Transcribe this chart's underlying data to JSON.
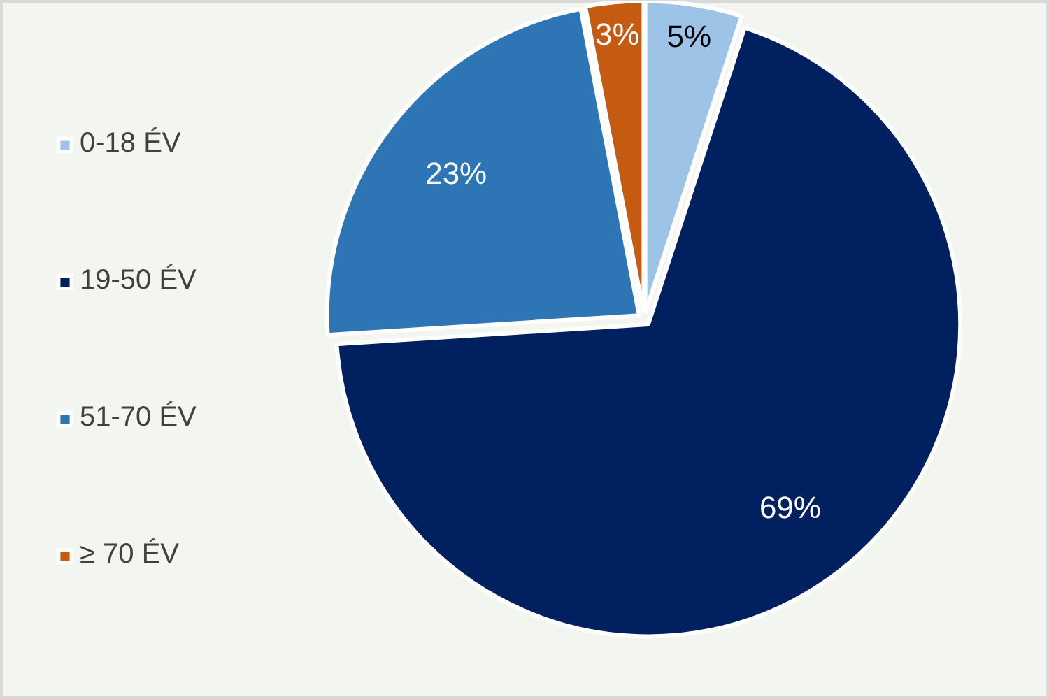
{
  "chart_data": {
    "type": "pie",
    "categories": [
      "0-18 ÉV",
      "19-50 ÉV",
      "51-70 ÉV",
      "≥ 70 ÉV"
    ],
    "values": [
      5,
      69,
      23,
      3
    ],
    "colors": [
      "#9dc3e6",
      "#002060",
      "#2e75b6",
      "#c55a11"
    ],
    "value_labels": [
      "5%",
      "69%",
      "23%",
      "3%"
    ],
    "legend": "left"
  }
}
